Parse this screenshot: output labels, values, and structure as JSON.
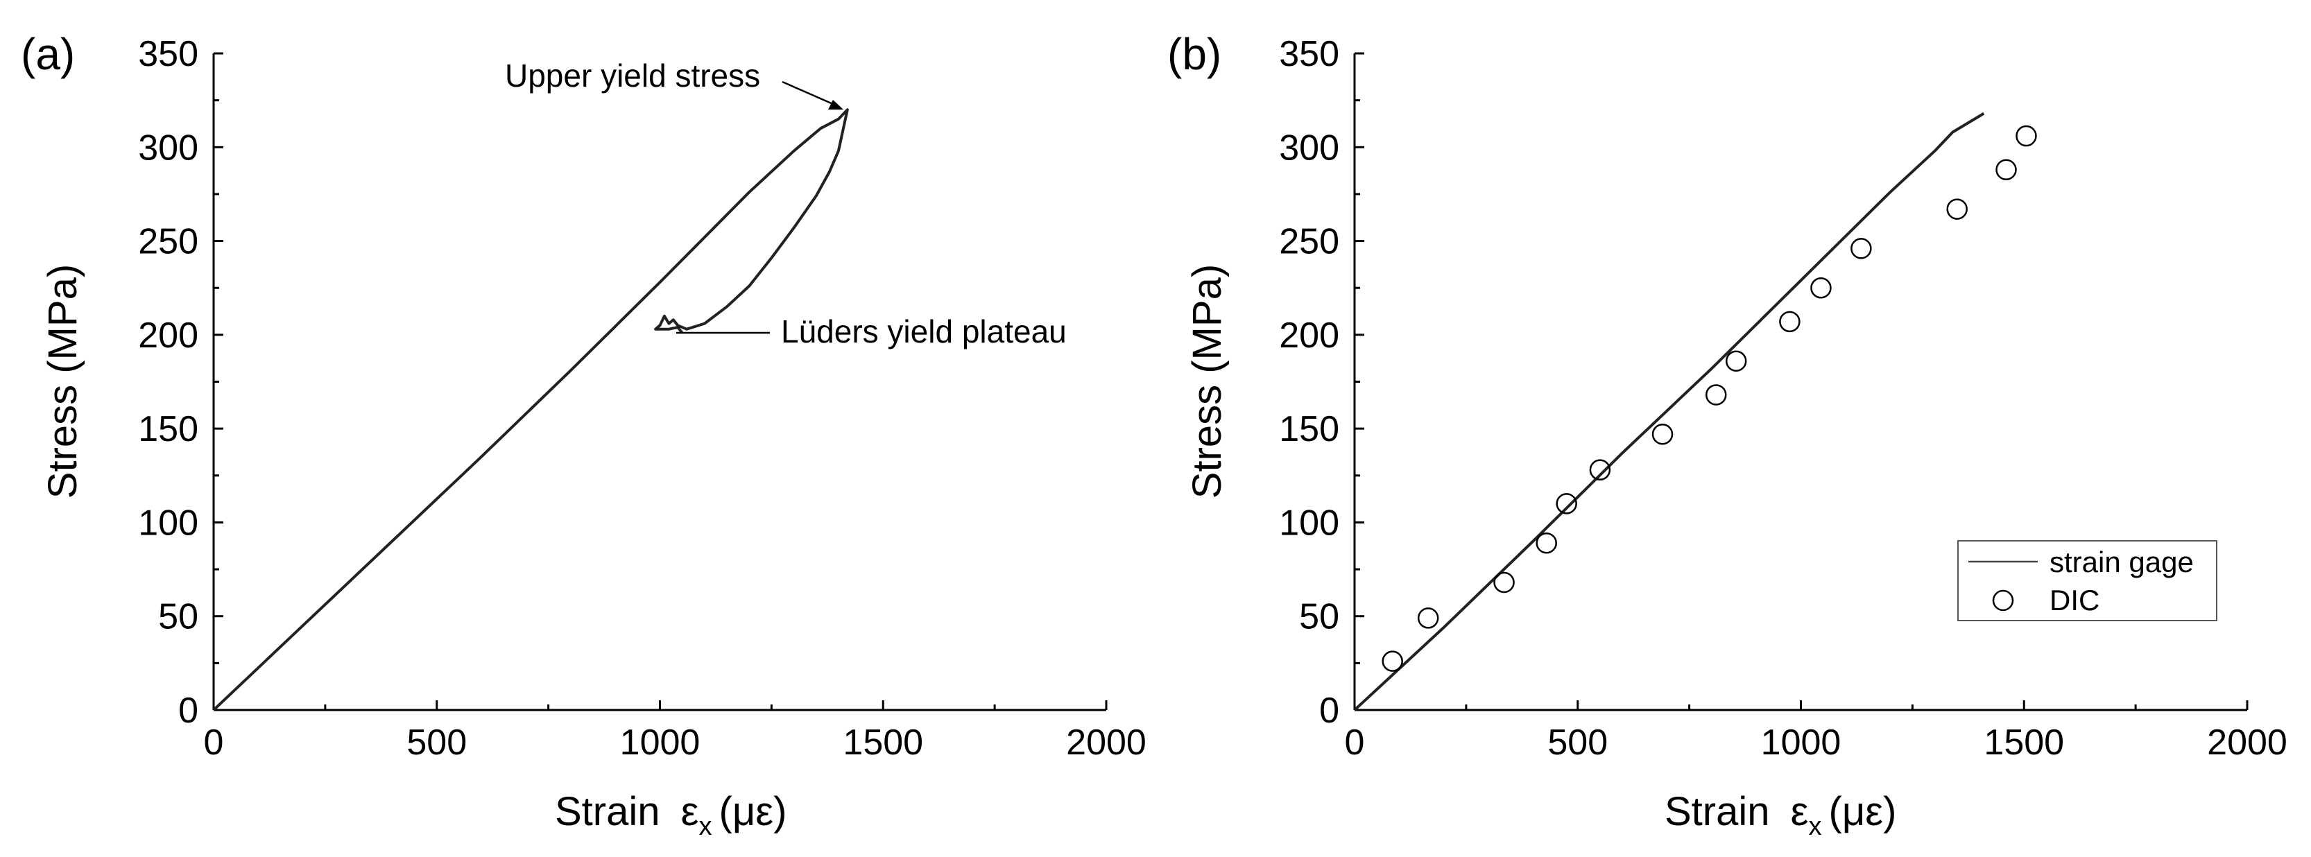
{
  "chart_data": [
    {
      "panel_label": "(a)",
      "type": "line",
      "xlabel": "Strain",
      "ylabel": "Stress (MPa)",
      "xlim": [
        0,
        2000
      ],
      "ylim": [
        0,
        350
      ],
      "xticks": [
        0,
        500,
        1000,
        1500,
        2000
      ],
      "yticks": [
        0,
        50,
        100,
        150,
        200,
        250,
        300,
        350
      ],
      "series": [
        {
          "name": "strain gage",
          "x": [
            0,
            200,
            400,
            600,
            800,
            1000,
            1200,
            1300,
            1360,
            1400,
            1420,
            1400,
            1380,
            1350,
            1300,
            1250,
            1200,
            1150,
            1100,
            1060,
            1040,
            1030,
            1020,
            1010,
            1000,
            990,
            1000,
            1020,
            1040,
            1050
          ],
          "y": [
            0,
            45,
            90,
            135,
            181,
            228,
            276,
            298,
            310,
            315,
            320,
            298,
            287,
            274,
            257,
            241,
            226,
            215,
            206,
            203,
            205,
            208,
            206,
            210,
            205,
            203,
            203,
            203,
            204,
            201
          ]
        }
      ],
      "annotations": [
        {
          "text": "Upper yield stress",
          "x": 1420,
          "y": 320
        },
        {
          "text": "Lüders yield plateau",
          "x": 1040,
          "y": 201
        }
      ]
    },
    {
      "panel_label": "(b)",
      "type": "line",
      "xlabel": "Strain",
      "ylabel": "Stress (MPa)",
      "xlim": [
        0,
        2000
      ],
      "ylim": [
        0,
        350
      ],
      "xticks": [
        0,
        500,
        1000,
        1500,
        2000
      ],
      "yticks": [
        0,
        50,
        100,
        150,
        200,
        250,
        300,
        350
      ],
      "series": [
        {
          "name": "strain gage",
          "x": [
            0,
            200,
            400,
            600,
            800,
            1000,
            1200,
            1300,
            1340,
            1410
          ],
          "y": [
            0,
            44,
            90,
            137,
            182,
            229,
            276,
            298,
            308,
            318
          ]
        },
        {
          "name": "DIC",
          "marker": "circle",
          "x": [
            85,
            165,
            335,
            430,
            475,
            550,
            690,
            810,
            855,
            975,
            1045,
            1135,
            1350,
            1460,
            1505
          ],
          "y": [
            26,
            49,
            68,
            89,
            110,
            128,
            147,
            168,
            186,
            207,
            225,
            246,
            267,
            288,
            306
          ]
        }
      ],
      "legend": {
        "position": "bottom-right",
        "entries": [
          "strain gage",
          "DIC"
        ]
      }
    }
  ]
}
